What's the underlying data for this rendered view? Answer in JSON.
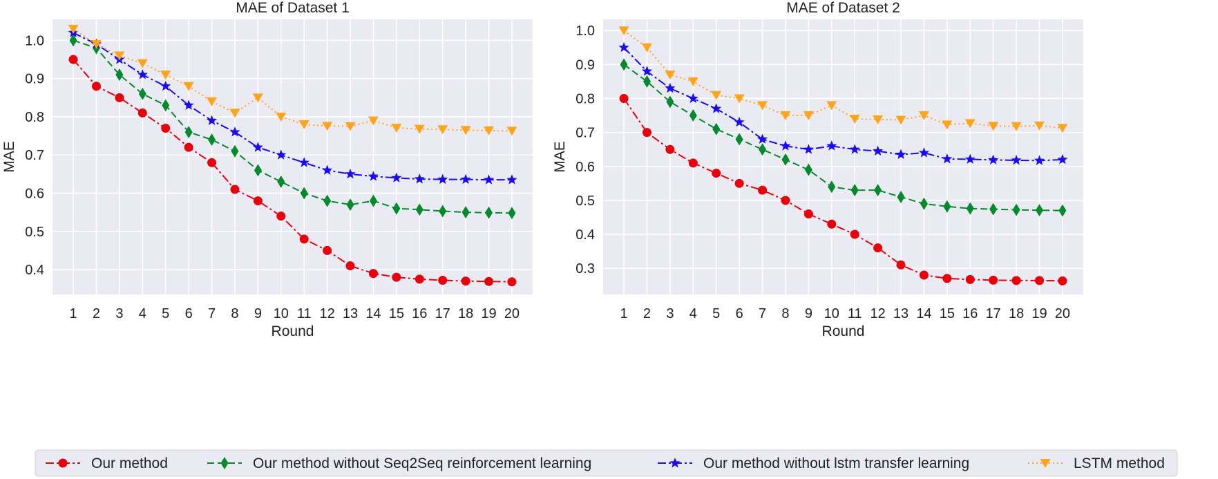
{
  "chart_data": [
    {
      "type": "line",
      "title": "MAE of Dataset 1",
      "xlabel": "Round",
      "ylabel": "MAE",
      "x": [
        1,
        2,
        3,
        4,
        5,
        6,
        7,
        8,
        9,
        10,
        11,
        12,
        13,
        14,
        15,
        16,
        17,
        18,
        19,
        20
      ],
      "ylim": [
        0.335,
        1.055
      ],
      "yticks": [
        0.4,
        0.5,
        0.6,
        0.7,
        0.8,
        0.9,
        1.0
      ],
      "ytick_labels": [
        "0.4",
        "0.5",
        "0.6",
        "0.7",
        "0.8",
        "0.9",
        "1.0"
      ],
      "grid": true,
      "series": [
        {
          "name": "Our method",
          "values": [
            0.95,
            0.88,
            0.85,
            0.81,
            0.77,
            0.72,
            0.68,
            0.61,
            0.58,
            0.54,
            0.48,
            0.45,
            0.41,
            0.39,
            0.38,
            0.375,
            0.372,
            0.37,
            0.369,
            0.368
          ]
        },
        {
          "name": "Our method without Seq2Seq reinforcement learning",
          "values": [
            1.0,
            0.98,
            0.91,
            0.86,
            0.83,
            0.76,
            0.74,
            0.71,
            0.66,
            0.63,
            0.6,
            0.58,
            0.57,
            0.58,
            0.56,
            0.557,
            0.553,
            0.55,
            0.549,
            0.548
          ]
        },
        {
          "name": "Our method without lstm transfer learning",
          "values": [
            1.02,
            0.99,
            0.95,
            0.91,
            0.88,
            0.83,
            0.79,
            0.76,
            0.72,
            0.7,
            0.68,
            0.66,
            0.65,
            0.644,
            0.64,
            0.637,
            0.636,
            0.636,
            0.635,
            0.635
          ]
        },
        {
          "name": "LSTM method",
          "values": [
            1.03,
            0.99,
            0.96,
            0.94,
            0.91,
            0.88,
            0.84,
            0.81,
            0.85,
            0.8,
            0.78,
            0.776,
            0.775,
            0.79,
            0.771,
            0.768,
            0.767,
            0.765,
            0.764,
            0.763
          ]
        }
      ]
    },
    {
      "type": "line",
      "title": "MAE of Dataset 2",
      "xlabel": "Round",
      "ylabel": "MAE",
      "x": [
        1,
        2,
        3,
        4,
        5,
        6,
        7,
        8,
        9,
        10,
        11,
        12,
        13,
        14,
        15,
        16,
        17,
        18,
        19,
        20
      ],
      "ylim": [
        0.223,
        1.033
      ],
      "yticks": [
        0.3,
        0.4,
        0.5,
        0.6,
        0.7,
        0.8,
        0.9,
        1.0
      ],
      "ytick_labels": [
        "0.3",
        "0.4",
        "0.5",
        "0.6",
        "0.7",
        "0.8",
        "0.9",
        "1.0"
      ],
      "grid": true,
      "series": [
        {
          "name": "Our method",
          "values": [
            0.8,
            0.7,
            0.65,
            0.61,
            0.58,
            0.55,
            0.53,
            0.5,
            0.46,
            0.43,
            0.4,
            0.36,
            0.31,
            0.28,
            0.27,
            0.267,
            0.265,
            0.264,
            0.264,
            0.263
          ]
        },
        {
          "name": "Our method without Seq2Seq reinforcement learning",
          "values": [
            0.9,
            0.85,
            0.79,
            0.75,
            0.71,
            0.68,
            0.65,
            0.62,
            0.59,
            0.54,
            0.53,
            0.53,
            0.51,
            0.49,
            0.482,
            0.476,
            0.474,
            0.472,
            0.471,
            0.47
          ]
        },
        {
          "name": "Our method without lstm transfer learning",
          "values": [
            0.95,
            0.88,
            0.83,
            0.8,
            0.77,
            0.73,
            0.68,
            0.66,
            0.65,
            0.66,
            0.65,
            0.645,
            0.635,
            0.64,
            0.622,
            0.621,
            0.619,
            0.618,
            0.617,
            0.62
          ]
        },
        {
          "name": "LSTM method",
          "values": [
            1.0,
            0.95,
            0.87,
            0.85,
            0.81,
            0.8,
            0.78,
            0.75,
            0.75,
            0.78,
            0.74,
            0.738,
            0.737,
            0.75,
            0.723,
            0.727,
            0.719,
            0.718,
            0.72,
            0.713
          ]
        }
      ]
    }
  ],
  "legend": {
    "placement": "bottom-center",
    "entries": [
      "Our method",
      "Our method without Seq2Seq reinforcement learning",
      "Our method without lstm transfer learning",
      "LSTM method"
    ]
  },
  "styles": {
    "series_colors": [
      "#e8000b",
      "#028a2c",
      "#1a0bf0",
      "#ffa41d"
    ],
    "series_markers": [
      "circle",
      "diamond",
      "star",
      "triangle-down"
    ],
    "series_dash": [
      "dashdot",
      "dashed",
      "dashdot",
      "dotted"
    ],
    "panel_background": "#eaeaf2",
    "grid_color": "#ffffff"
  }
}
